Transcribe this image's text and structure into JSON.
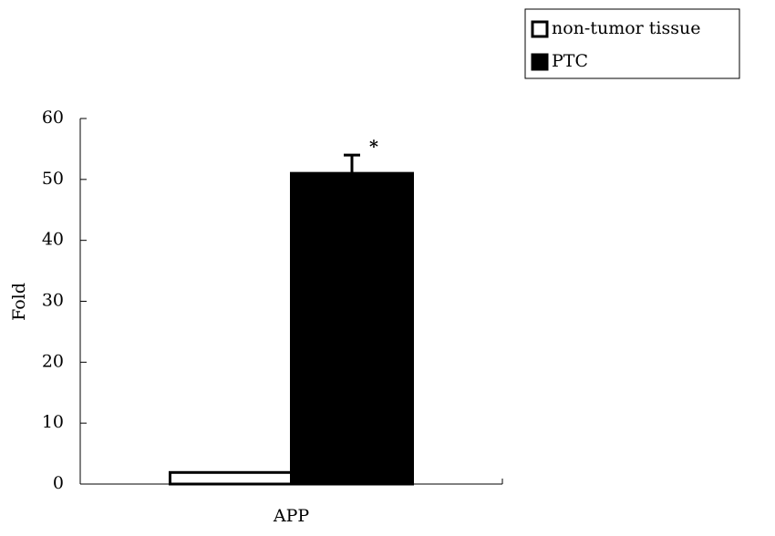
{
  "chart_data": {
    "type": "bar",
    "categories": [
      "APP"
    ],
    "series": [
      {
        "name": "non-tumor tissue",
        "color": "#ffffff",
        "values": [
          1.9
        ]
      },
      {
        "name": "PTC",
        "color": "#000000",
        "values": [
          51
        ],
        "errors": [
          3
        ]
      }
    ],
    "edgecolor": "#000000",
    "ylabel": "Fold",
    "annotation": "*",
    "ylim": [
      0,
      60
    ],
    "yticks": [
      0,
      10,
      20,
      30,
      40,
      50,
      60
    ],
    "grid": false,
    "legend": "upper right"
  }
}
